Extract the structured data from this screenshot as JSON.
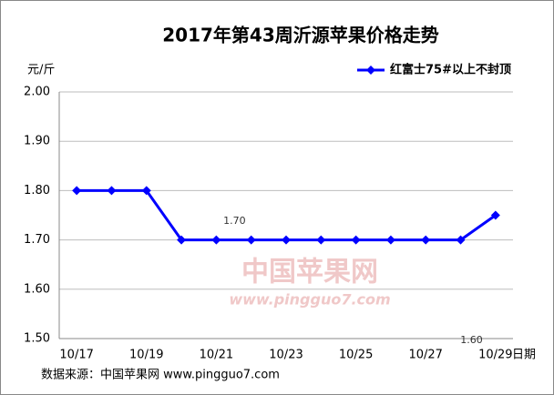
{
  "chart_data": {
    "type": "line",
    "title": "2017年第43周沂源苹果价格走势",
    "y_label": "元/斤",
    "x_label": "日期",
    "source": "数据来源：中国苹果网 www.pingguo7.com",
    "watermark": [
      "中国苹果网",
      "www.pingguo7.com"
    ],
    "annotations": [
      "1.70",
      "1.60"
    ],
    "categories": [
      "10/17",
      null,
      "10/19",
      null,
      "10/21",
      null,
      "10/23",
      null,
      "10/25",
      null,
      "10/27",
      null,
      "10/29"
    ],
    "series": [
      {
        "name": "红富士75#以上不封顶",
        "color": "#0000ff",
        "values": [
          1.8,
          1.8,
          1.8,
          1.7,
          1.7,
          1.7,
          1.7,
          1.7,
          1.7,
          1.7,
          1.7,
          1.7,
          1.75
        ]
      }
    ],
    "ylim": [
      1.5,
      2.0
    ],
    "yticks": [
      {
        "value": 1.5,
        "label": "1.50"
      },
      {
        "value": 1.6,
        "label": "1.60"
      },
      {
        "value": 1.7,
        "label": "1.70"
      },
      {
        "value": 1.8,
        "label": "1.80"
      },
      {
        "value": 1.9,
        "label": "1.90"
      },
      {
        "value": 2.0,
        "label": "2.00"
      }
    ],
    "grid": true,
    "legend": "top-right"
  }
}
